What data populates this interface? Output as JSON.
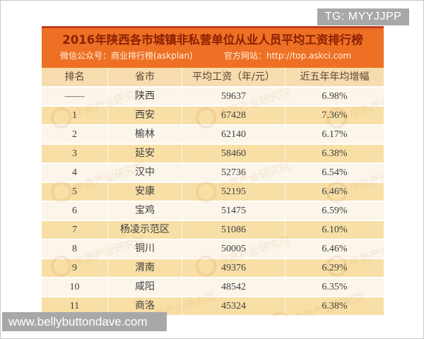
{
  "overlays": {
    "tg_badge": "TG: MYYJJPP",
    "bottom_watermark": "www.bellybuttondave.com"
  },
  "table": {
    "title": "2016年陕西各市城镇非私营单位从业人员平均工资排行榜",
    "source_wechat": "微信公众号：商业排行榜(askplan)",
    "source_website": "官方网站：http://top.askci.com",
    "agency_watermark": "中商产业研究院"
  },
  "chart_data": {
    "type": "table",
    "title": "2016年陕西各市城镇非私营单位从业人员平均工资排行榜",
    "columns": [
      "排名",
      "省市",
      "平均工资（年/元）",
      "近五年年均增幅"
    ],
    "rows": [
      {
        "rank": "——",
        "region": "陕西",
        "avg_wage": 59637,
        "growth": "6.98%"
      },
      {
        "rank": "1",
        "region": "西安",
        "avg_wage": 67428,
        "growth": "7.36%"
      },
      {
        "rank": "2",
        "region": "榆林",
        "avg_wage": 62140,
        "growth": "6.17%"
      },
      {
        "rank": "3",
        "region": "延安",
        "avg_wage": 58460,
        "growth": "6.38%"
      },
      {
        "rank": "4",
        "region": "汉中",
        "avg_wage": 52736,
        "growth": "6.54%"
      },
      {
        "rank": "5",
        "region": "安康",
        "avg_wage": 52195,
        "growth": "6.46%"
      },
      {
        "rank": "6",
        "region": "宝鸡",
        "avg_wage": 51475,
        "growth": "6.59%"
      },
      {
        "rank": "7",
        "region": "杨凌示范区",
        "avg_wage": 51086,
        "growth": "6.10%"
      },
      {
        "rank": "8",
        "region": "铜川",
        "avg_wage": 50005,
        "growth": "6.46%"
      },
      {
        "rank": "9",
        "region": "渭南",
        "avg_wage": 49376,
        "growth": "6.29%"
      },
      {
        "rank": "10",
        "region": "咸阳",
        "avg_wage": 48542,
        "growth": "6.35%"
      },
      {
        "rank": "11",
        "region": "商洛",
        "avg_wage": 45324,
        "growth": "6.38%"
      }
    ]
  },
  "colors": {
    "header_orange": "#ee7024",
    "top_accent_red": "#bf3a1e",
    "title_text": "#8c2005",
    "column_header_bg": "#f6dcae",
    "stripe_tan": "#f8dfa6",
    "stripe_cream": "#fbf5ea",
    "badge_gray": "#a8a8a8"
  }
}
